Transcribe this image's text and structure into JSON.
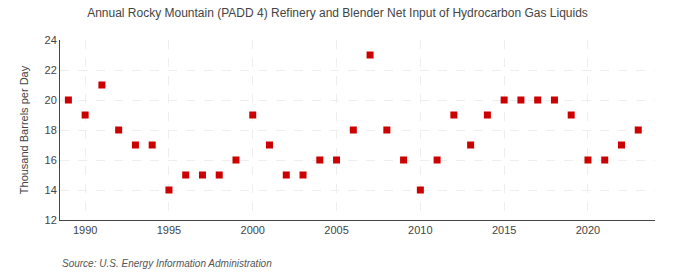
{
  "chart_data": {
    "type": "scatter",
    "title": "Annual Rocky Mountain (PADD 4) Refinery and Blender Net Input of Hydrocarbon Gas Liquids",
    "ylabel": "Thousand Barrels per Day",
    "annotations": [
      "Source: U.S. Energy Information Administration"
    ],
    "x": [
      1989,
      1990,
      1991,
      1992,
      1993,
      1994,
      1995,
      1996,
      1997,
      1998,
      1999,
      2000,
      2001,
      2002,
      2003,
      2004,
      2005,
      2006,
      2007,
      2008,
      2009,
      2010,
      2011,
      2012,
      2013,
      2014,
      2015,
      2016,
      2017,
      2018,
      2019,
      2020,
      2021,
      2022,
      2023
    ],
    "values": [
      20,
      19,
      21,
      18,
      17,
      17,
      14,
      15,
      15,
      15,
      16,
      19,
      17,
      15,
      15,
      16,
      16,
      18,
      23,
      18,
      16,
      14,
      16,
      19,
      17,
      19,
      20,
      20,
      20,
      20,
      19,
      16,
      16,
      17,
      18
    ],
    "color": "#cc0000",
    "marker": "square",
    "xlim": [
      1988.5,
      2024
    ],
    "xticks": [
      1990,
      1995,
      2000,
      2005,
      2010,
      2015,
      2020
    ],
    "ylim": [
      12,
      24
    ],
    "yticks": [
      12,
      14,
      16,
      18,
      20,
      22,
      24
    ],
    "grid": true
  }
}
